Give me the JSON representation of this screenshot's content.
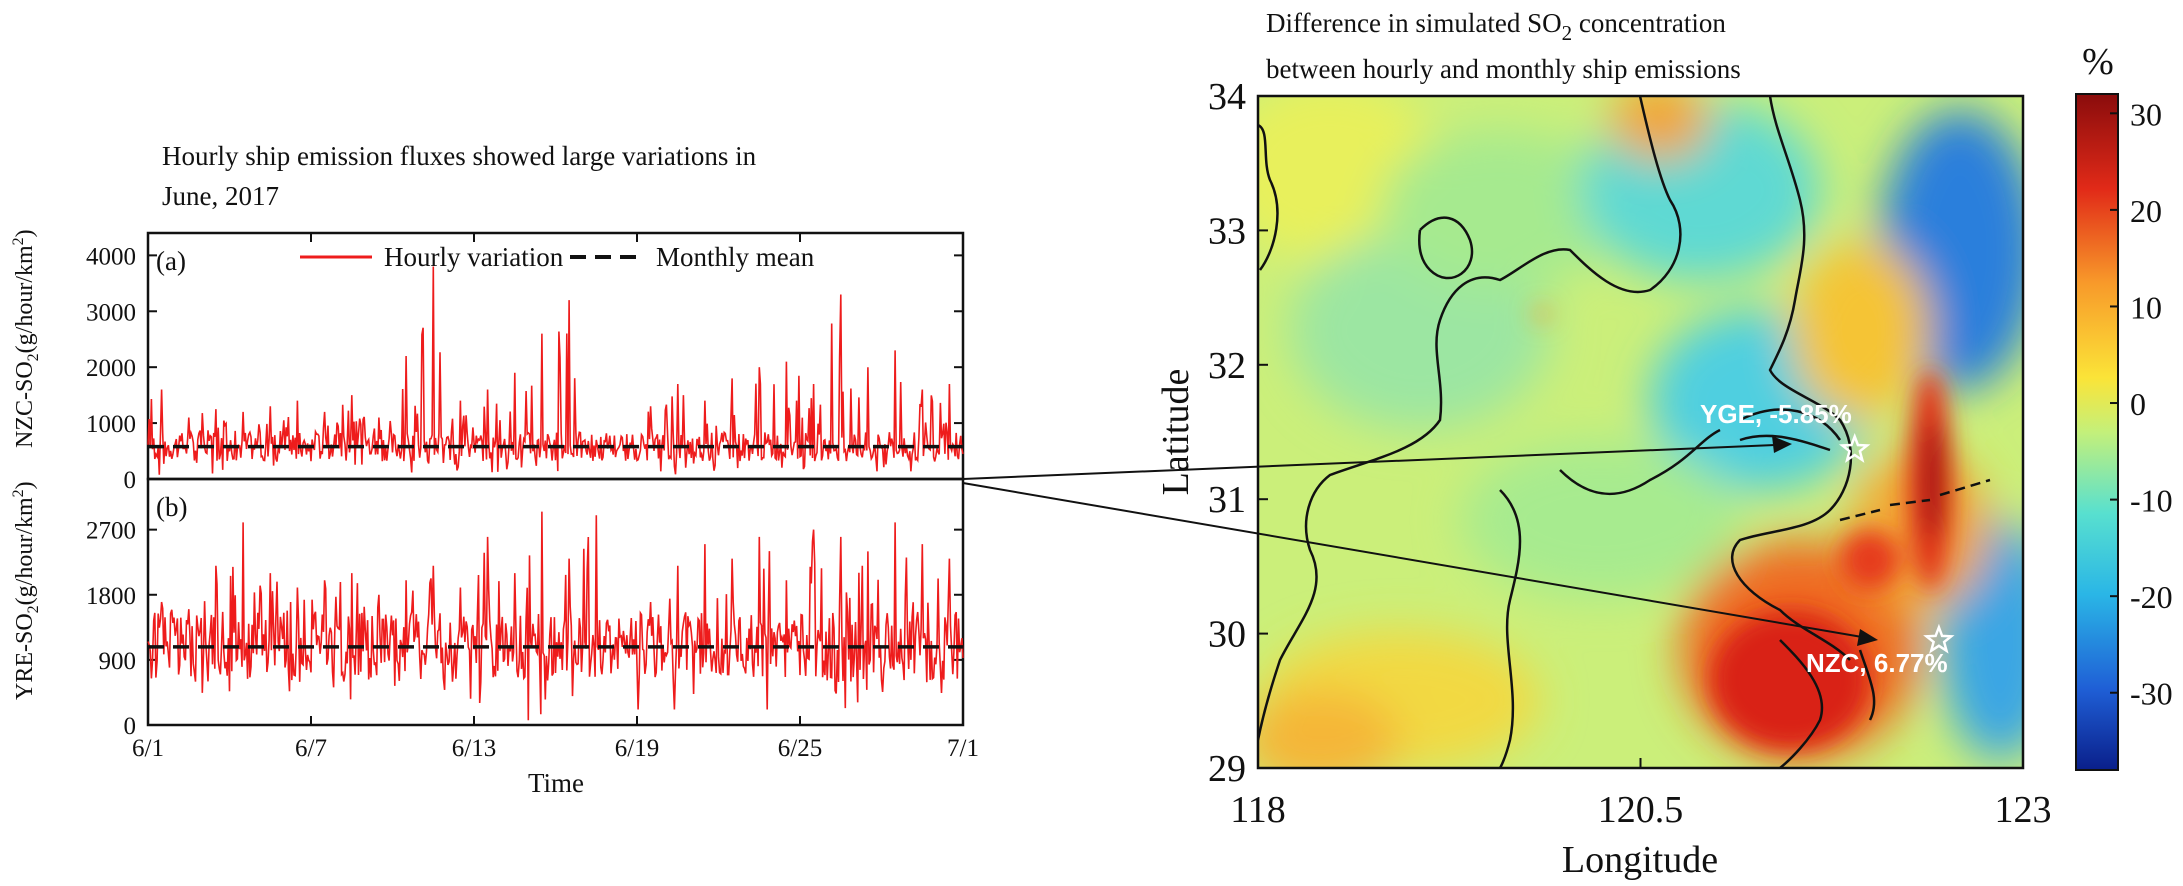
{
  "chart_data": [
    {
      "type": "line",
      "panel_label": "(a)",
      "title": "Hourly ship emission fluxes showed large variations in June, 2017",
      "title_line1": "Hourly ship emission fluxes showed large variations in",
      "title_line2": "June, 2017",
      "ylabel": "NZC-SO",
      "ylabel_sub": "2",
      "ylabel_unit": "(g/hour/km",
      "ylabel_sup": "2",
      "ylabel_close": ")",
      "ylim": [
        0,
        4400
      ],
      "yticks": [
        0,
        1000,
        2000,
        3000,
        4000
      ],
      "yticks_text": [
        "0",
        "1000",
        "2000",
        "3000",
        "4000"
      ],
      "x_range": [
        "6/1",
        "7/1"
      ],
      "legend": [
        "Hourly variation",
        "Monthly mean"
      ],
      "legend_placement": "top",
      "series": [
        {
          "name": "Hourly variation",
          "color": "#ee1c1c",
          "x": [
            "6/1",
            "6/2",
            "6/3",
            "6/4",
            "6/5",
            "6/6",
            "6/7",
            "6/8",
            "6/9",
            "6/10",
            "6/11",
            "6/12",
            "6/13",
            "6/14",
            "6/15",
            "6/16",
            "6/17",
            "6/18",
            "6/19",
            "6/20",
            "6/21",
            "6/22",
            "6/23",
            "6/24",
            "6/25",
            "6/26",
            "6/27",
            "6/28",
            "6/29",
            "6/30",
            "7/1"
          ],
          "daily_peaks": [
            1600,
            1100,
            1250,
            1200,
            1300,
            1400,
            1200,
            1500,
            1100,
            2200,
            3800,
            1400,
            1600,
            1900,
            2600,
            3200,
            700,
            500,
            1300,
            1700,
            1400,
            1800,
            2000,
            2100,
            1700,
            3300,
            2000,
            2300,
            1600,
            1700,
            700
          ],
          "daily_minima": [
            50,
            100,
            80,
            120,
            60,
            90,
            150,
            100,
            70,
            110,
            130,
            80,
            60,
            120,
            90,
            80,
            280,
            100,
            60,
            80,
            90,
            110,
            100,
            70,
            90,
            100,
            80,
            70,
            60,
            90,
            100
          ]
        },
        {
          "name": "Monthly mean",
          "color": "#111111",
          "value": 580
        }
      ]
    },
    {
      "type": "line",
      "panel_label": "(b)",
      "ylabel": "YRE-SO",
      "ylabel_sub": "2",
      "ylabel_unit": "(g/hour/km",
      "ylabel_sup": "2",
      "ylabel_close": ")",
      "xlabel": "Time",
      "ylim": [
        0,
        3400
      ],
      "yticks": [
        0,
        900,
        1800,
        2700
      ],
      "yticks_text": [
        "0",
        "900",
        "1800",
        "2700"
      ],
      "xticks": [
        "6/1",
        "6/7",
        "6/13",
        "6/19",
        "6/25",
        "7/1"
      ],
      "series": [
        {
          "name": "Hourly variation",
          "color": "#ee1c1c",
          "x": [
            "6/1",
            "6/2",
            "6/3",
            "6/4",
            "6/5",
            "6/6",
            "6/7",
            "6/8",
            "6/9",
            "6/10",
            "6/11",
            "6/12",
            "6/13",
            "6/14",
            "6/15",
            "6/16",
            "6/17",
            "6/18",
            "6/19",
            "6/20",
            "6/21",
            "6/22",
            "6/23",
            "6/24",
            "6/25",
            "6/26",
            "6/27",
            "6/28",
            "6/29",
            "6/30",
            "7/1"
          ],
          "daily_peaks": [
            1700,
            1600,
            2200,
            2800,
            2100,
            1900,
            2000,
            2100,
            1800,
            2000,
            2200,
            1900,
            2600,
            2100,
            2950,
            2300,
            2900,
            1300,
            1700,
            2200,
            2500,
            2300,
            2600,
            2000,
            2700,
            2600,
            2400,
            2800,
            2500,
            2300,
            2400
          ],
          "daily_minima": [
            600,
            300,
            400,
            200,
            300,
            250,
            400,
            300,
            200,
            350,
            250,
            200,
            150,
            0,
            0,
            100,
            300,
            0,
            0,
            200,
            300,
            250,
            200,
            300,
            250,
            200,
            300,
            250,
            200,
            300,
            500
          ]
        },
        {
          "name": "Monthly mean",
          "color": "#111111",
          "value": 1080
        }
      ]
    },
    {
      "type": "heatmap",
      "title": "Difference in simulated SO2 concentration between hourly and monthly ship emissions",
      "title_line1": "Difference in simulated SO",
      "title_line1_sub": "2",
      "title_line1_tail": " concentration",
      "title_line2": "between hourly  and monthly ship emissions",
      "xlabel": "Longitude",
      "ylabel": "Latitude",
      "xlim": [
        118,
        123
      ],
      "ylim": [
        29,
        34
      ],
      "xticks": [
        118,
        120.5,
        123
      ],
      "xticks_text": [
        "118",
        "120.5",
        "123"
      ],
      "yticks": [
        29,
        30,
        31,
        32,
        33,
        34
      ],
      "yticks_text": [
        "29",
        "30",
        "31",
        "32",
        "33",
        "34"
      ],
      "colorbar": {
        "unit": "%",
        "range": [
          -38,
          32
        ],
        "ticks": [
          30,
          20,
          10,
          0,
          -10,
          -20,
          -30
        ],
        "ticks_text": [
          "30",
          "20",
          "10",
          "0",
          "-10",
          "-20",
          "-30"
        ],
        "colors": [
          "#0a1f8a",
          "#1f5fd6",
          "#2ab6e6",
          "#58e0cf",
          "#c4f07a",
          "#fbe438",
          "#f89a2a",
          "#e12a18",
          "#8a0c0c"
        ]
      },
      "stations": [
        {
          "label": "YGE, -5.85%",
          "lon": 121.9,
          "lat": 31.37
        },
        {
          "label": "NZC, 6.77%",
          "lon": 122.45,
          "lat": 29.95
        }
      ]
    }
  ]
}
